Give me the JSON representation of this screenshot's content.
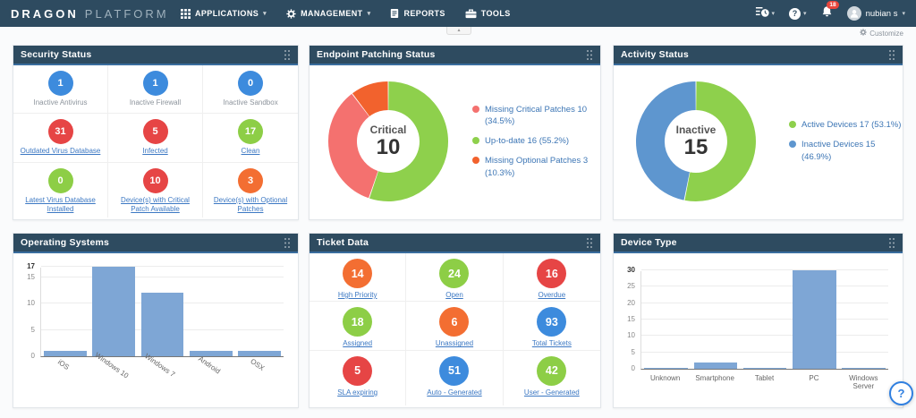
{
  "navbar": {
    "brand_primary": "DRAGON",
    "brand_secondary": "PLATFORM",
    "menus": [
      {
        "label": "APPLICATIONS",
        "icon": "grid-icon",
        "has_chevron": true
      },
      {
        "label": "MANAGEMENT",
        "icon": "gear-icon",
        "has_chevron": true
      },
      {
        "label": "REPORTS",
        "icon": "report-icon",
        "has_chevron": false
      },
      {
        "label": "TOOLS",
        "icon": "tools-icon",
        "has_chevron": false
      }
    ],
    "notification_count": "18",
    "user_name": "nubian s"
  },
  "subheader": {
    "customize_label": "Customize"
  },
  "glyphs": {
    "chevron_down": "▾",
    "chevron_up": "▴",
    "question": "?"
  },
  "icons": {
    "grid-icon": "3x3-squares",
    "gear-icon": "gear",
    "report-icon": "document",
    "tools-icon": "briefcase",
    "tasks-clock-icon": "list-with-clock",
    "help-icon": "question-circle",
    "bell-icon": "bell",
    "avatar-icon": "person-circle",
    "drag-handle-icon": "dots-grid",
    "help-bubble-icon": "question-circle"
  },
  "colors": {
    "navbar_bg": "#2e4b60",
    "blue": "#3d8bdd",
    "red": "#e64545",
    "green": "#8dce46",
    "orange": "#f36e32",
    "bar_blue": "#7ea6d5",
    "link_blue": "#3c78c3"
  },
  "panels": {
    "security_status": {
      "title": "Security Status",
      "items": [
        {
          "value": "1",
          "label": "Inactive Antivirus",
          "color": "#3d8bdd",
          "link": false
        },
        {
          "value": "1",
          "label": "Inactive Firewall",
          "color": "#3d8bdd",
          "link": false
        },
        {
          "value": "0",
          "label": "Inactive Sandbox",
          "color": "#3d8bdd",
          "link": false
        },
        {
          "value": "31",
          "label": "Outdated Virus Database",
          "color": "#e64545",
          "link": true
        },
        {
          "value": "5",
          "label": "Infected",
          "color": "#e64545",
          "link": true
        },
        {
          "value": "17",
          "label": "Clean",
          "color": "#8dce46",
          "link": true
        },
        {
          "value": "0",
          "label": "Latest Virus Database Installed",
          "color": "#8dce46",
          "link": true
        },
        {
          "value": "10",
          "label": "Device(s) with Critical Patch Available",
          "color": "#e64545",
          "link": true
        },
        {
          "value": "3",
          "label": "Device(s) with Optional Patches",
          "color": "#f36e32",
          "link": true
        }
      ]
    },
    "endpoint_patching_status": {
      "title": "Endpoint Patching Status"
    },
    "activity_status": {
      "title": "Activity Status"
    },
    "operating_systems": {
      "title": "Operating Systems"
    },
    "ticket_data": {
      "title": "Ticket Data",
      "items": [
        {
          "value": "14",
          "label": "High Priority",
          "color": "#f36e32",
          "link": true
        },
        {
          "value": "24",
          "label": "Open",
          "color": "#8dce46",
          "link": true
        },
        {
          "value": "16",
          "label": "Overdue",
          "color": "#e64545",
          "link": true
        },
        {
          "value": "18",
          "label": "Assigned",
          "color": "#8dce46",
          "link": true
        },
        {
          "value": "6",
          "label": "Unassigned",
          "color": "#f36e32",
          "link": true
        },
        {
          "value": "93",
          "label": "Total Tickets",
          "color": "#3d8bdd",
          "link": true
        },
        {
          "value": "5",
          "label": "SLA expiring",
          "color": "#e64545",
          "link": true
        },
        {
          "value": "51",
          "label": "Auto - Generated",
          "color": "#3d8bdd",
          "link": true
        },
        {
          "value": "42",
          "label": "User - Generated",
          "color": "#8dce46",
          "link": true
        }
      ]
    },
    "device_type": {
      "title": "Device Type"
    }
  },
  "chart_data": [
    {
      "type": "pie",
      "title": "Endpoint Patching Status",
      "center": {
        "label": "Critical",
        "value": "10"
      },
      "hole": 0.52,
      "legend_position": "right",
      "slices": [
        {
          "name": "Missing Critical Patches",
          "value": 10,
          "pct": "34.5%",
          "legend": "Missing Critical Patches 10 (34.5%)",
          "color": "#f4716f",
          "start_angle": 198.7,
          "end_angle": 322.9
        },
        {
          "name": "Up-to-date",
          "value": 16,
          "pct": "55.2%",
          "legend": "Up-to-date  16 (55.2%)",
          "color": "#8ed04c",
          "start_angle": 0,
          "end_angle": 198.7
        },
        {
          "name": "Missing Optional Patches",
          "value": 3,
          "pct": "10.3%",
          "legend": "Missing Optional Patches 3 (10.3%)",
          "color": "#f2622d",
          "start_angle": 322.9,
          "end_angle": 360
        }
      ]
    },
    {
      "type": "pie",
      "title": "Activity Status",
      "center": {
        "label": "Inactive",
        "value": "15"
      },
      "hole": 0.52,
      "legend_position": "right",
      "slices": [
        {
          "name": "Active Devices",
          "value": 17,
          "pct": "53.1%",
          "legend": "Active Devices 17 (53.1%)",
          "color": "#8ed04c",
          "start_angle": 0,
          "end_angle": 191.2
        },
        {
          "name": "Inactive Devices",
          "value": 15,
          "pct": "46.9%",
          "legend": "Inactive Devices 15 (46.9%)",
          "color": "#5e96cf",
          "start_angle": 191.2,
          "end_angle": 360
        }
      ]
    },
    {
      "type": "bar",
      "title": "Operating Systems",
      "categories": [
        "iOS",
        "Windows 10",
        "Windows 7",
        "Android",
        "OSX"
      ],
      "values": [
        1,
        17,
        12,
        1,
        1
      ],
      "ylim": [
        0,
        17
      ],
      "yticks": [
        0,
        5,
        10,
        15,
        17
      ],
      "bar_color": "#7ea6d5",
      "label_rotation": 35,
      "grid": true
    },
    {
      "type": "bar",
      "title": "Device Type",
      "categories": [
        "Unknown",
        "Smartphone",
        "Tablet",
        "PC",
        "Windows Server"
      ],
      "values": [
        0,
        2,
        0,
        30,
        0
      ],
      "ylim": [
        0,
        30
      ],
      "yticks": [
        0,
        5,
        10,
        15,
        20,
        25,
        30
      ],
      "bar_color": "#7ea6d5",
      "label_rotation": 0,
      "grid": true
    }
  ]
}
